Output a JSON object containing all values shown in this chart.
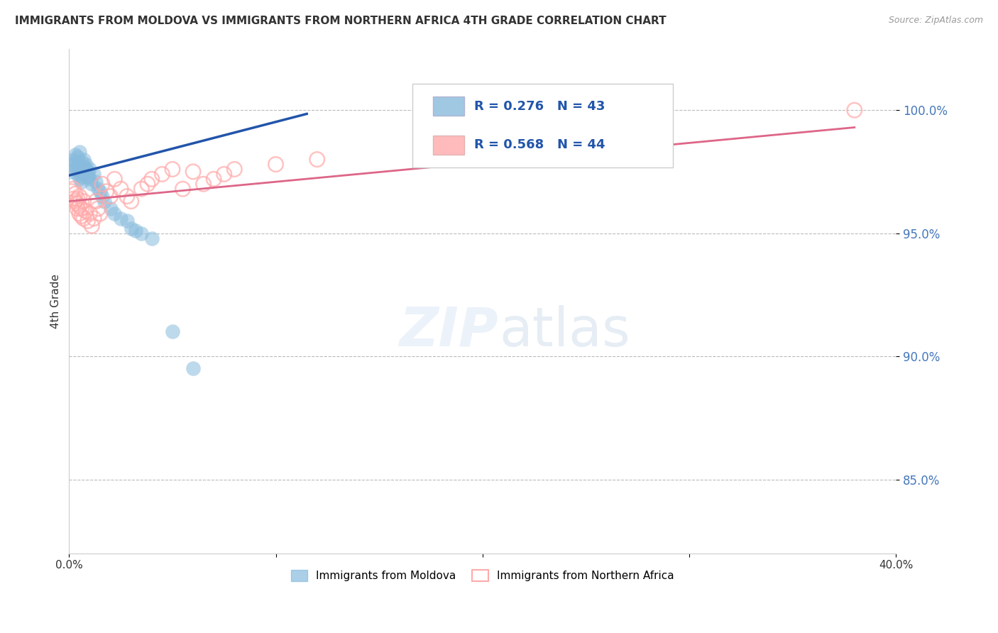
{
  "title": "IMMIGRANTS FROM MOLDOVA VS IMMIGRANTS FROM NORTHERN AFRICA 4TH GRADE CORRELATION CHART",
  "source": "Source: ZipAtlas.com",
  "ylabel": "4th Grade",
  "ytick_labels": [
    "85.0%",
    "90.0%",
    "95.0%",
    "100.0%"
  ],
  "ytick_values": [
    0.85,
    0.9,
    0.95,
    1.0
  ],
  "xlim": [
    0.0,
    0.4
  ],
  "ylim": [
    0.82,
    1.025
  ],
  "legend1_label": "Immigrants from Moldova",
  "legend2_label": "Immigrants from Northern Africa",
  "R_moldova": 0.276,
  "N_moldova": 43,
  "R_africa": 0.568,
  "N_africa": 44,
  "color_moldova": "#88bbdd",
  "color_moldova_line": "#2255aa",
  "color_africa": "#ffaaaa",
  "color_africa_line": "#dd6688",
  "moldova_x": [
    0.001,
    0.002,
    0.002,
    0.003,
    0.003,
    0.003,
    0.004,
    0.004,
    0.004,
    0.005,
    0.005,
    0.005,
    0.005,
    0.006,
    0.006,
    0.006,
    0.006,
    0.007,
    0.007,
    0.007,
    0.008,
    0.008,
    0.009,
    0.009,
    0.01,
    0.01,
    0.011,
    0.012,
    0.013,
    0.014,
    0.015,
    0.016,
    0.017,
    0.02,
    0.022,
    0.025,
    0.028,
    0.03,
    0.032,
    0.035,
    0.04,
    0.05,
    0.06
  ],
  "moldova_y": [
    0.975,
    0.98,
    0.978,
    0.982,
    0.979,
    0.976,
    0.977,
    0.974,
    0.981,
    0.972,
    0.978,
    0.975,
    0.983,
    0.973,
    0.976,
    0.979,
    0.971,
    0.974,
    0.977,
    0.98,
    0.976,
    0.978,
    0.973,
    0.975,
    0.972,
    0.976,
    0.97,
    0.974,
    0.971,
    0.968,
    0.967,
    0.965,
    0.963,
    0.96,
    0.958,
    0.956,
    0.955,
    0.952,
    0.951,
    0.95,
    0.948,
    0.91,
    0.895
  ],
  "africa_x": [
    0.001,
    0.002,
    0.002,
    0.003,
    0.003,
    0.004,
    0.004,
    0.004,
    0.005,
    0.005,
    0.005,
    0.006,
    0.006,
    0.007,
    0.007,
    0.008,
    0.009,
    0.01,
    0.011,
    0.012,
    0.013,
    0.014,
    0.015,
    0.016,
    0.018,
    0.02,
    0.022,
    0.025,
    0.028,
    0.03,
    0.035,
    0.038,
    0.04,
    0.045,
    0.05,
    0.055,
    0.06,
    0.065,
    0.07,
    0.075,
    0.08,
    0.1,
    0.12,
    0.38
  ],
  "africa_y": [
    0.967,
    0.964,
    0.968,
    0.963,
    0.966,
    0.96,
    0.964,
    0.962,
    0.958,
    0.961,
    0.965,
    0.957,
    0.96,
    0.963,
    0.956,
    0.959,
    0.955,
    0.958,
    0.953,
    0.956,
    0.963,
    0.96,
    0.958,
    0.97,
    0.967,
    0.965,
    0.972,
    0.968,
    0.965,
    0.963,
    0.968,
    0.97,
    0.972,
    0.974,
    0.976,
    0.968,
    0.975,
    0.97,
    0.972,
    0.974,
    0.976,
    0.978,
    0.98,
    1.0
  ]
}
